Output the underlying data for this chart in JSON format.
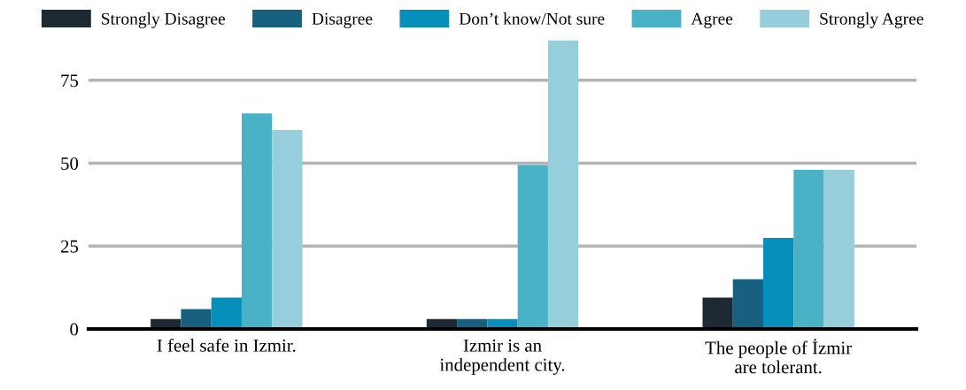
{
  "chart_data": {
    "type": "bar",
    "categories": [
      "I feel safe in Izmir.",
      "Izmir is an\nindependent city.",
      "The people of İzmir\nare tolerant."
    ],
    "series": [
      {
        "name": "Strongly Disagree",
        "color": "#1e2a33",
        "values": [
          3,
          3,
          9.5
        ]
      },
      {
        "name": "Disagree",
        "color": "#17607f",
        "values": [
          6,
          3,
          15
        ]
      },
      {
        "name": "Don’t know/Not sure",
        "color": "#068fbb",
        "values": [
          9.5,
          3,
          27.5
        ]
      },
      {
        "name": "Agree",
        "color": "#4ab2c7",
        "values": [
          65,
          49.5,
          48
        ]
      },
      {
        "name": "Strongly Agree",
        "color": "#96cfdb",
        "values": [
          60,
          87,
          48
        ]
      }
    ],
    "ylim": [
      0,
      87.5
    ],
    "yticks": [
      0,
      25,
      50,
      75
    ],
    "grid": "y",
    "legend": "top"
  }
}
